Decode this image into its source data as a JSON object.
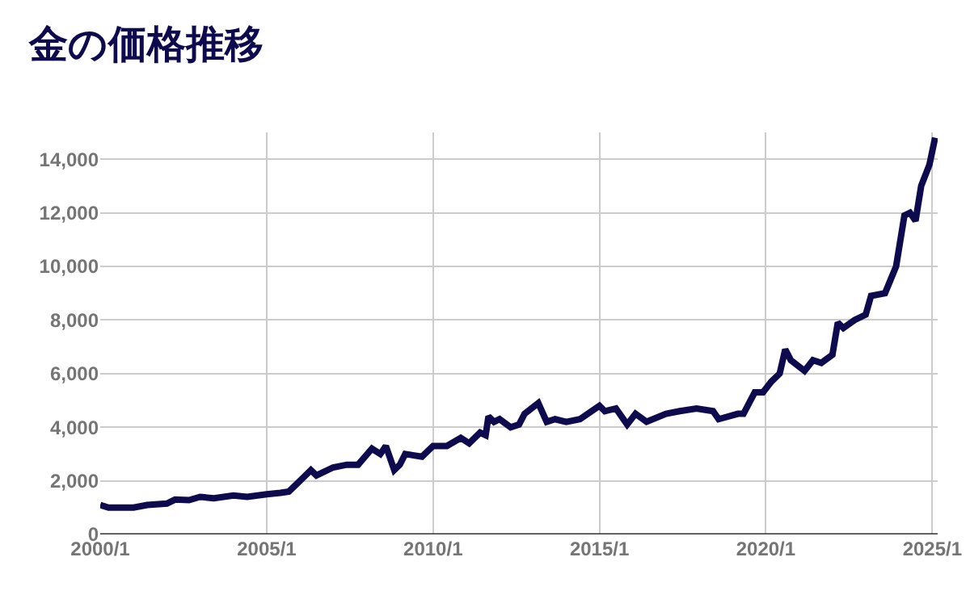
{
  "chart_data": {
    "type": "line",
    "title": "金の価格推移",
    "x": [
      "2000-01",
      "2000-04",
      "2001-01",
      "2001-06",
      "2002-01",
      "2002-04",
      "2002-09",
      "2003-01",
      "2003-06",
      "2004-01",
      "2004-06",
      "2005-01",
      "2005-06",
      "2005-09",
      "2006-01",
      "2006-05",
      "2006-07",
      "2007-01",
      "2007-06",
      "2007-10",
      "2008-03",
      "2008-06",
      "2008-08",
      "2008-11",
      "2009-01",
      "2009-03",
      "2009-09",
      "2010-01",
      "2010-06",
      "2010-11",
      "2011-02",
      "2011-06",
      "2011-08",
      "2011-09",
      "2011-11",
      "2012-01",
      "2012-05",
      "2012-08",
      "2012-10",
      "2013-03",
      "2013-06",
      "2013-09",
      "2014-01",
      "2014-06",
      "2015-01",
      "2015-03",
      "2015-07",
      "2015-11",
      "2016-02",
      "2016-06",
      "2017-01",
      "2017-06",
      "2017-12",
      "2018-06",
      "2018-08",
      "2019-03",
      "2019-05",
      "2019-09",
      "2019-12",
      "2020-03",
      "2020-06",
      "2020-08",
      "2020-10",
      "2021-03",
      "2021-06",
      "2021-09",
      "2022-01",
      "2022-03",
      "2022-05",
      "2022-09",
      "2023-01",
      "2023-03",
      "2023-08",
      "2023-10",
      "2023-12",
      "2024-03",
      "2024-05",
      "2024-07",
      "2024-09",
      "2024-12",
      "2025-02"
    ],
    "series": [
      {
        "color": "#0d0a4e",
        "values": [
          1100,
          1000,
          1000,
          1100,
          1150,
          1300,
          1280,
          1400,
          1350,
          1450,
          1400,
          1500,
          1550,
          1600,
          2000,
          2400,
          2200,
          2500,
          2600,
          2600,
          3200,
          3000,
          3300,
          2400,
          2600,
          3000,
          2900,
          3300,
          3300,
          3600,
          3400,
          3800,
          3700,
          4400,
          4200,
          4300,
          4000,
          4100,
          4500,
          4900,
          4200,
          4300,
          4200,
          4300,
          4800,
          4600,
          4700,
          4100,
          4500,
          4200,
          4500,
          4600,
          4700,
          4600,
          4300,
          4500,
          4500,
          5300,
          5300,
          5700,
          6000,
          6900,
          6500,
          6100,
          6500,
          6400,
          6700,
          7900,
          7700,
          8000,
          8200,
          8900,
          9000,
          9500,
          10000,
          11900,
          12000,
          11700,
          13000,
          13800,
          14800
        ]
      }
    ],
    "xlim": [
      "2000-01",
      "2025-03"
    ],
    "xticks": [
      {
        "value": "2000-01",
        "label": "2000/1"
      },
      {
        "value": "2005-01",
        "label": "2005/1"
      },
      {
        "value": "2010-01",
        "label": "2010/1"
      },
      {
        "value": "2015-01",
        "label": "2015/1"
      },
      {
        "value": "2020-01",
        "label": "2020/1"
      },
      {
        "value": "2025-01",
        "label": "2025/1"
      }
    ],
    "ylim": [
      0,
      15000
    ],
    "yticks": [
      {
        "value": 0,
        "label": "0"
      },
      {
        "value": 2000,
        "label": "2,000"
      },
      {
        "value": 4000,
        "label": "4,000"
      },
      {
        "value": 6000,
        "label": "6,000"
      },
      {
        "value": 8000,
        "label": "8,000"
      },
      {
        "value": 10000,
        "label": "10,000"
      },
      {
        "value": 12000,
        "label": "12,000"
      },
      {
        "value": 14000,
        "label": "14,000"
      }
    ],
    "grid": true,
    "marker": "none",
    "line_style": "solid"
  }
}
